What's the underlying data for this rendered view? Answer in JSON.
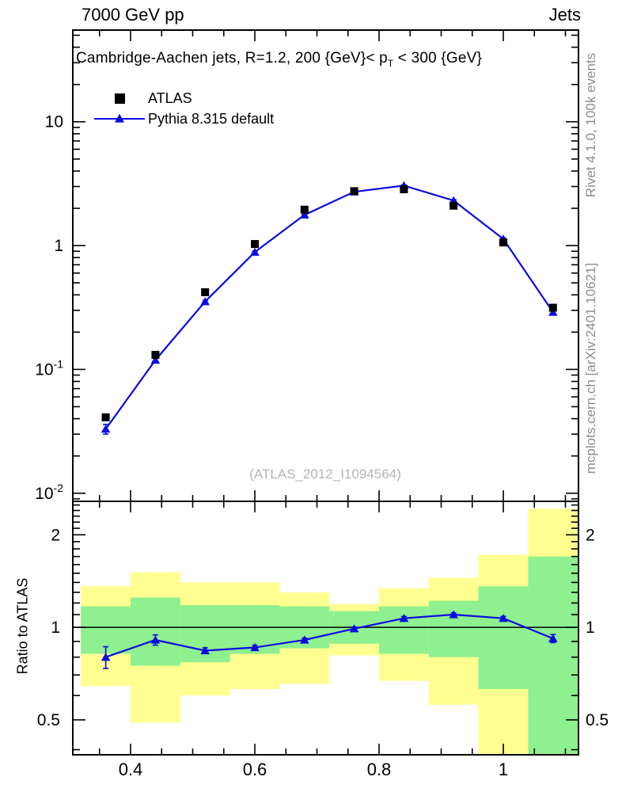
{
  "header": {
    "left": "7000 GeV pp",
    "right": "Jets"
  },
  "panel_title": {
    "prefix": "Cambridge-Aachen jets, R=1.2,  200 {GeV}< p",
    "sub": "T",
    "suffix": " < 300 {GeV}"
  },
  "legend": [
    {
      "label": "ATLAS",
      "marker": "square",
      "color": "#000000"
    },
    {
      "label": "Pythia 8.315 default",
      "marker": "triangle-line",
      "color": "#0b0be0"
    }
  ],
  "watermark": "(ATLAS_2012_I1094564)",
  "side_notes": {
    "top": "Rivet 4.1.0,  100k events",
    "bottom": "mcplots.cern.ch [arXiv:2401.10621]"
  },
  "ratio_axis_title": "Ratio to ATLAS",
  "colors": {
    "mc": "#0b0be0",
    "data": "#000000",
    "frame": "#000000",
    "band_outer": "#ffff91",
    "band_inner": "#8ef08e",
    "muted": "#8c8c8c",
    "watermark": "#b4b4b4"
  },
  "chart_data": {
    "type": "line",
    "title": "Cambridge-Aachen jets, R=1.2, 200 GeV < pT < 300 GeV",
    "x": [
      0.36,
      0.44,
      0.52,
      0.6,
      0.68,
      0.76,
      0.84,
      0.92,
      1.0,
      1.08
    ],
    "series": [
      {
        "name": "ATLAS",
        "marker": "square",
        "color": "#000000",
        "values": [
          0.041,
          0.131,
          0.42,
          1.03,
          1.95,
          2.75,
          2.85,
          2.1,
          1.06,
          0.315
        ],
        "err_frac": [
          0.04,
          0.025,
          0.02,
          0.015,
          0.012,
          0.012,
          0.012,
          0.015,
          0.02,
          0.03
        ]
      },
      {
        "name": "Pythia 8.315 default",
        "marker": "triangle",
        "color": "#0b0be0",
        "values": [
          0.033,
          0.119,
          0.353,
          0.886,
          1.77,
          2.72,
          3.05,
          2.31,
          1.13,
          0.29
        ],
        "err_frac": [
          0.09,
          0.035,
          0.02,
          0.015,
          0.012,
          0.012,
          0.012,
          0.015,
          0.02,
          0.04
        ]
      }
    ],
    "ratio": {
      "label": "Ratio to ATLAS",
      "values": [
        0.8,
        0.91,
        0.84,
        0.86,
        0.91,
        0.99,
        1.07,
        1.1,
        1.07,
        0.92
      ],
      "err": [
        0.065,
        0.035,
        0.018,
        0.015,
        0.013,
        0.012,
        0.015,
        0.015,
        0.015,
        0.028
      ]
    },
    "bands": {
      "bin_edges": [
        0.32,
        0.4,
        0.48,
        0.56,
        0.64,
        0.72,
        0.8,
        0.88,
        0.96,
        1.04,
        1.12
      ],
      "yellow": [
        [
          0.645,
          1.36
        ],
        [
          0.49,
          1.51
        ],
        [
          0.6,
          1.4
        ],
        [
          0.63,
          1.4
        ],
        [
          0.655,
          1.3
        ],
        [
          0.81,
          1.19
        ],
        [
          0.67,
          1.34
        ],
        [
          0.56,
          1.45
        ],
        [
          0.385,
          1.72
        ],
        [
          0.385,
          2.43
        ]
      ],
      "green": [
        [
          0.82,
          1.17
        ],
        [
          0.75,
          1.25
        ],
        [
          0.77,
          1.18
        ],
        [
          0.82,
          1.18
        ],
        [
          0.855,
          1.17
        ],
        [
          0.885,
          1.13
        ],
        [
          0.82,
          1.17
        ],
        [
          0.8,
          1.22
        ],
        [
          0.63,
          1.36
        ],
        [
          0.385,
          1.7
        ]
      ]
    },
    "axes": {
      "xlim": [
        0.307,
        1.121
      ],
      "ylim": [
        0.0086,
        55
      ],
      "rlim": [
        0.385,
        2.57
      ],
      "ylog": true,
      "xticks": [
        0.4,
        0.6,
        0.8,
        1.0
      ],
      "xtick_labels": [
        "0.4",
        "0.6",
        "0.8",
        "1"
      ],
      "xminor_start": 0.35,
      "xminor_step": 0.05,
      "ytick_labels_main": [
        {
          "v": 10,
          "base": "10",
          "exp": ""
        },
        {
          "v": 1,
          "base": "1",
          "exp": ""
        },
        {
          "v": 0.1,
          "base": "10",
          "exp": "-1"
        },
        {
          "v": 0.01,
          "base": "10",
          "exp": "-2"
        }
      ],
      "ratio_ticks": [
        {
          "v": 2,
          "label": "2"
        },
        {
          "v": 1,
          "label": "1"
        },
        {
          "v": 0.5,
          "label": "0.5"
        }
      ],
      "ratio_minor_ticks": [
        0.4,
        0.6,
        0.7,
        0.8,
        0.9,
        1.1,
        1.2,
        1.3,
        1.4,
        1.5,
        1.6,
        1.7,
        1.8,
        1.9,
        2.1,
        2.2,
        2.3,
        2.4,
        2.5
      ]
    }
  }
}
